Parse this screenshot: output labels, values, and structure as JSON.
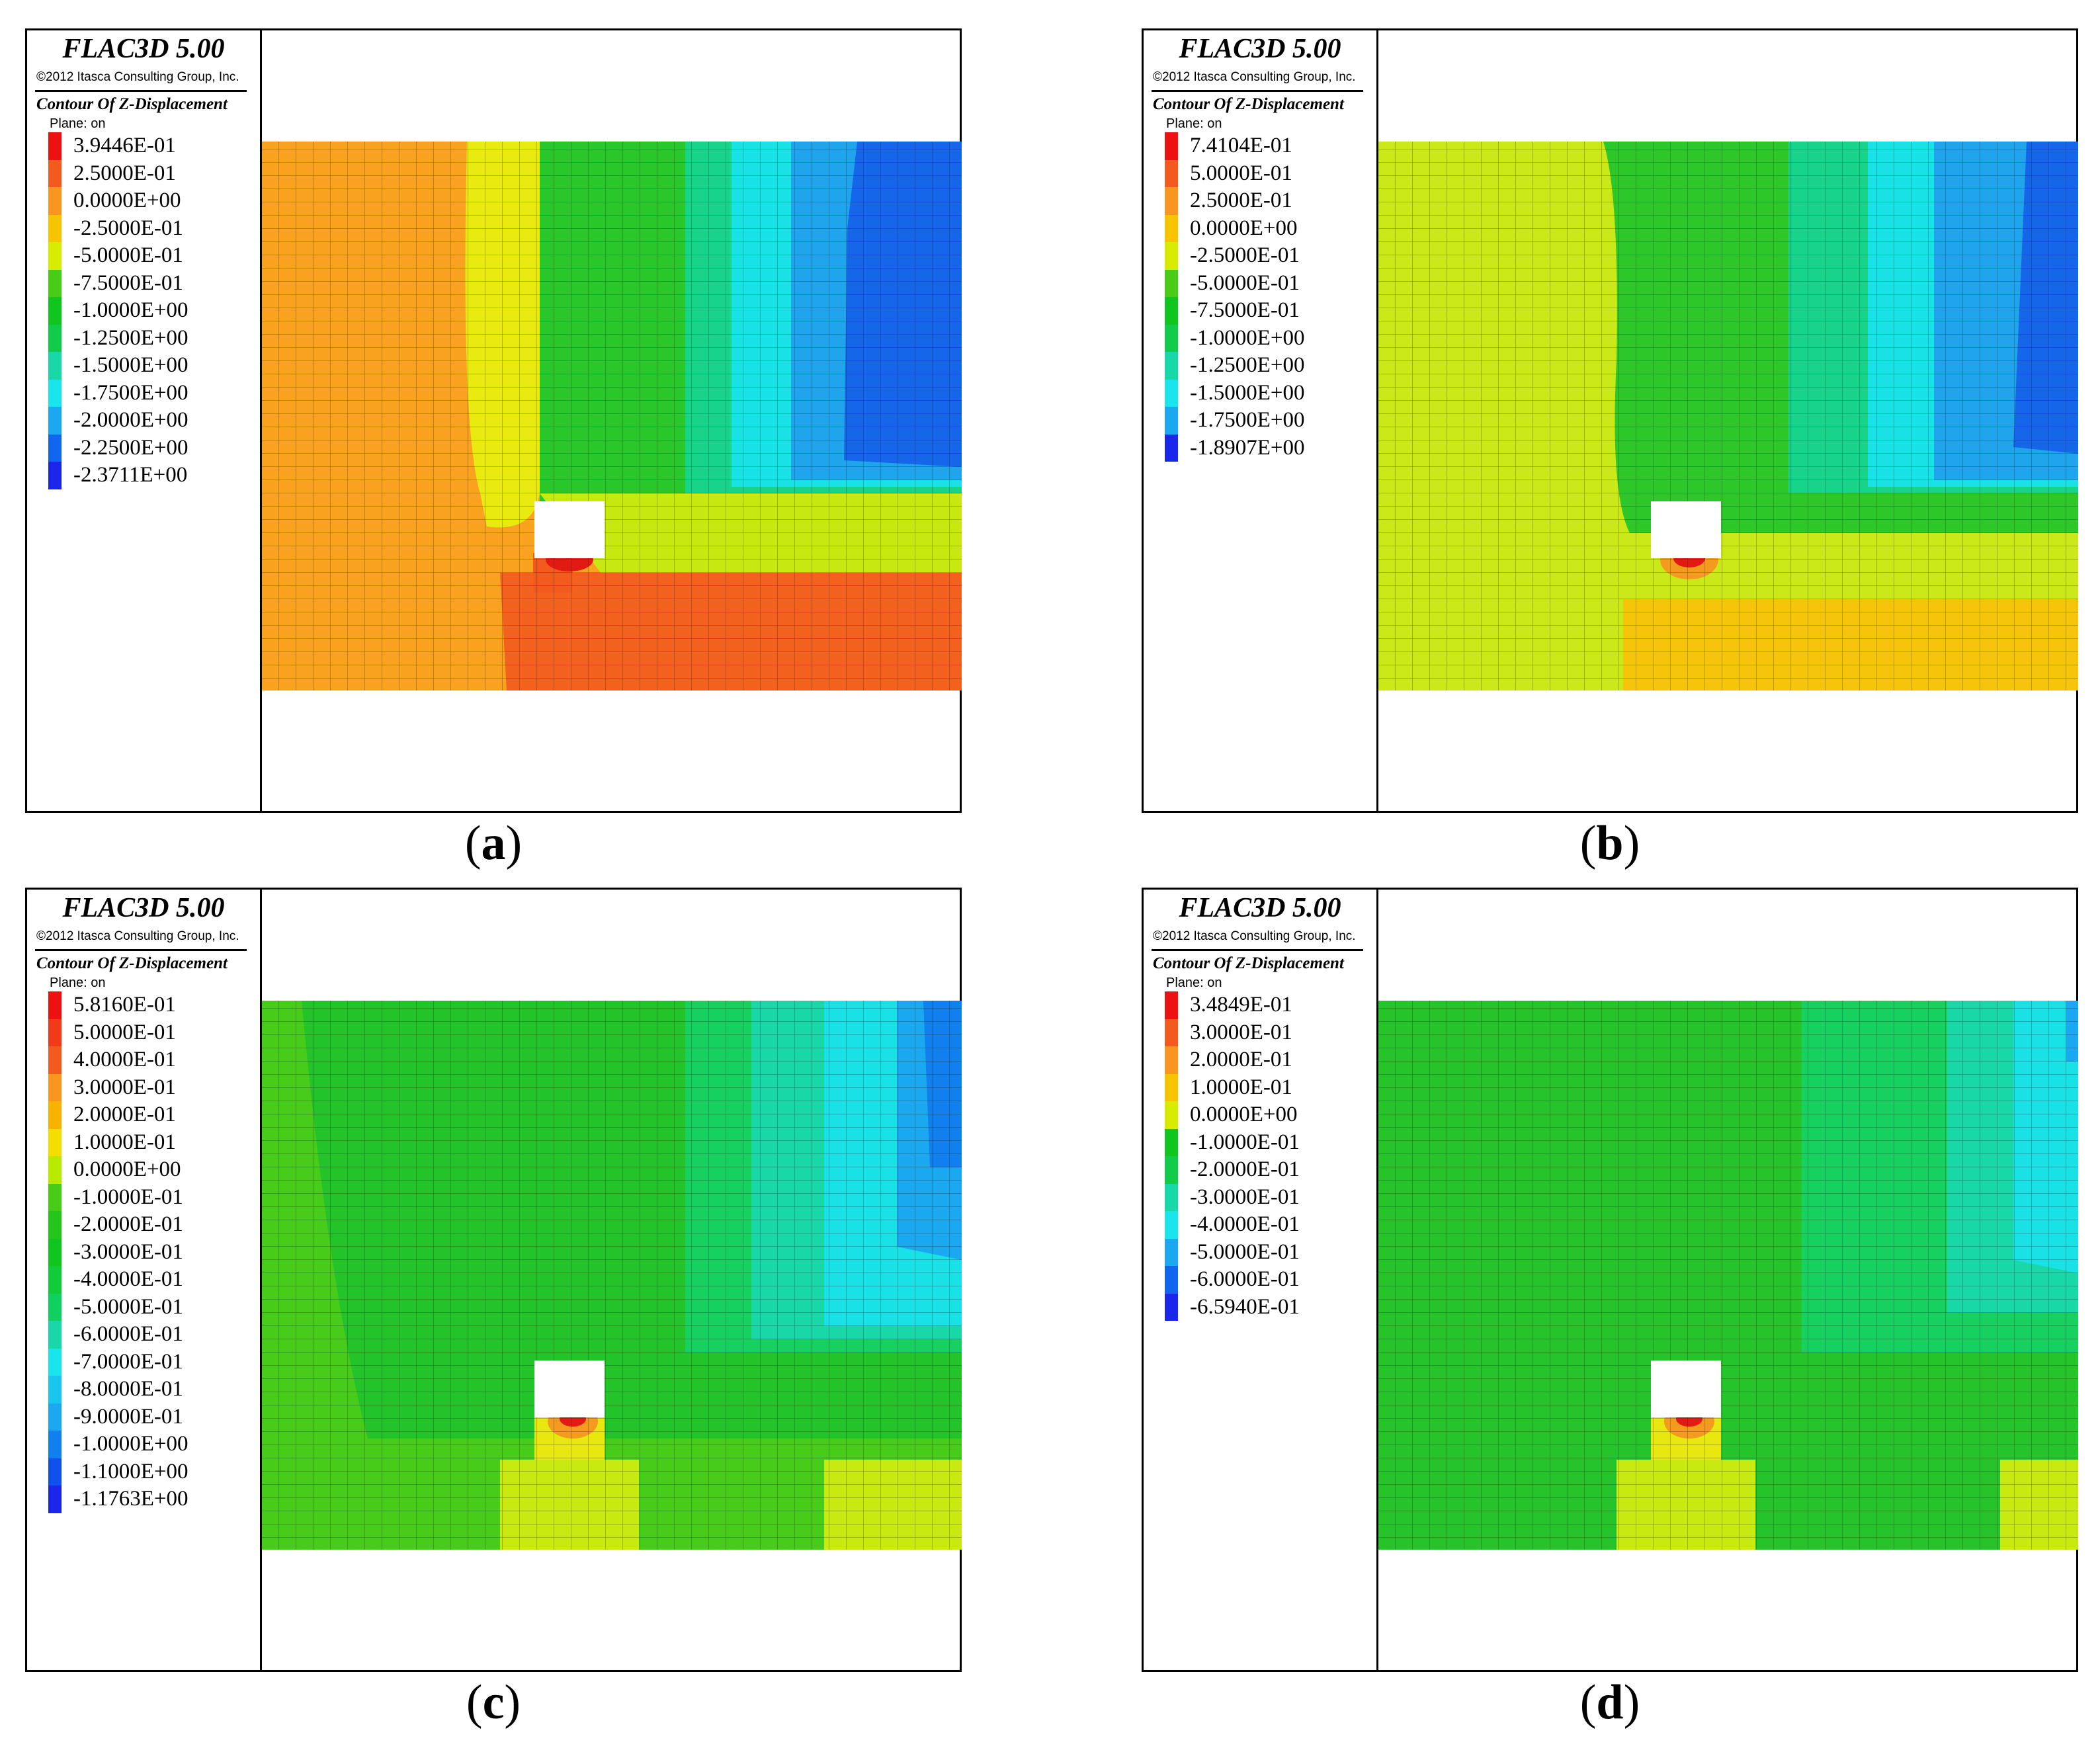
{
  "panels": [
    {
      "id": "a",
      "caption": "a",
      "legend": {
        "software": "FLAC3D 5.00",
        "copyright": "©2012 Itasca Consulting Group, Inc.",
        "contour_title": "Contour Of Z-Displacement",
        "plane": "Plane: on",
        "levels": [
          "3.9446E-01",
          "2.5000E-01",
          "0.0000E+00",
          "-2.5000E-01",
          "-5.0000E-01",
          "-7.5000E-01",
          "-1.0000E+00",
          "-1.2500E+00",
          "-1.5000E+00",
          "-1.7500E+00",
          "-2.0000E+00",
          "-2.2500E+00",
          "-2.3711E+00"
        ],
        "colors": [
          "#ee1111",
          "#f25a1e",
          "#f8961f",
          "#f6c400",
          "#d8ec00",
          "#49cc17",
          "#10c61e",
          "#10cc48",
          "#18d8a8",
          "#19e6ec",
          "#1ba8f0",
          "#1066ee",
          "#1a26ea"
        ]
      }
    },
    {
      "id": "b",
      "caption": "b",
      "legend": {
        "software": "FLAC3D 5.00",
        "copyright": "©2012 Itasca Consulting Group, Inc.",
        "contour_title": "Contour Of Z-Displacement",
        "plane": "Plane: on",
        "levels": [
          "7.4104E-01",
          "5.0000E-01",
          "2.5000E-01",
          "0.0000E+00",
          "-2.5000E-01",
          "-5.0000E-01",
          "-7.5000E-01",
          "-1.0000E+00",
          "-1.2500E+00",
          "-1.5000E+00",
          "-1.7500E+00",
          "-1.8907E+00"
        ],
        "colors": [
          "#ee1111",
          "#f25a1e",
          "#f8961f",
          "#f6c400",
          "#d8ec00",
          "#49cc17",
          "#10c61e",
          "#10cc48",
          "#18d8a8",
          "#19e6ec",
          "#1ba8f0",
          "#1a26ea"
        ]
      }
    },
    {
      "id": "c",
      "caption": "c",
      "legend": {
        "software": "FLAC3D 5.00",
        "copyright": "©2012 Itasca Consulting Group, Inc.",
        "contour_title": "Contour Of Z-Displacement",
        "plane": "Plane: on",
        "levels": [
          "5.8160E-01",
          "5.0000E-01",
          "4.0000E-01",
          "3.0000E-01",
          "2.0000E-01",
          "1.0000E-01",
          "0.0000E+00",
          "-1.0000E-01",
          "-2.0000E-01",
          "-3.0000E-01",
          "-4.0000E-01",
          "-5.0000E-01",
          "-6.0000E-01",
          "-7.0000E-01",
          "-8.0000E-01",
          "-9.0000E-01",
          "-1.0000E+00",
          "-1.1000E+00",
          "-1.1763E+00"
        ],
        "colors": [
          "#ee1111",
          "#f03a1a",
          "#f25a1e",
          "#f8961f",
          "#f6b400",
          "#f4dd00",
          "#b8ea00",
          "#49cc17",
          "#25c61c",
          "#10c61e",
          "#10cc38",
          "#10d060",
          "#18d8a8",
          "#19e6ec",
          "#1ac6f0",
          "#1ba8f0",
          "#1080ee",
          "#1050ec",
          "#1a26ea"
        ]
      }
    },
    {
      "id": "d",
      "caption": "d",
      "legend": {
        "software": "FLAC3D 5.00",
        "copyright": "©2012 Itasca Consulting Group, Inc.",
        "contour_title": "Contour Of Z-Displacement",
        "plane": "Plane: on",
        "levels": [
          "3.4849E-01",
          "3.0000E-01",
          "2.0000E-01",
          "1.0000E-01",
          "0.0000E+00",
          "-1.0000E-01",
          "-2.0000E-01",
          "-3.0000E-01",
          "-4.0000E-01",
          "-5.0000E-01",
          "-6.0000E-01",
          "-6.5940E-01"
        ],
        "colors": [
          "#ee1111",
          "#f25a1e",
          "#f8961f",
          "#f6c400",
          "#d8ec00",
          "#10c61e",
          "#10cc48",
          "#18d8a8",
          "#19e6ec",
          "#1ba8f0",
          "#1066ee",
          "#1a26ea"
        ]
      }
    }
  ],
  "chart_data": [
    {
      "type": "heatmap",
      "title": "Contour Of Z-Displacement",
      "panel": "a",
      "max": 0.39446,
      "min": -2.3711,
      "intervals": [
        0.25,
        0.0,
        -0.25,
        -0.5,
        -0.75,
        -1.0,
        -1.25,
        -1.5,
        -1.75,
        -2.0,
        -2.25
      ]
    },
    {
      "type": "heatmap",
      "title": "Contour Of Z-Displacement",
      "panel": "b",
      "max": 0.74104,
      "min": -1.8907,
      "intervals": [
        0.5,
        0.25,
        0.0,
        -0.25,
        -0.5,
        -0.75,
        -1.0,
        -1.25,
        -1.5,
        -1.75
      ]
    },
    {
      "type": "heatmap",
      "title": "Contour Of Z-Displacement",
      "panel": "c",
      "max": 0.5816,
      "min": -1.1763,
      "intervals": [
        0.5,
        0.4,
        0.3,
        0.2,
        0.1,
        0.0,
        -0.1,
        -0.2,
        -0.3,
        -0.4,
        -0.5,
        -0.6,
        -0.7,
        -0.8,
        -0.9,
        -1.0,
        -1.1
      ]
    },
    {
      "type": "heatmap",
      "title": "Contour Of Z-Displacement",
      "panel": "d",
      "max": 0.34849,
      "min": -0.6594,
      "intervals": [
        0.3,
        0.2,
        0.1,
        0.0,
        -0.1,
        -0.2,
        -0.3,
        -0.4,
        -0.5,
        -0.6
      ]
    }
  ]
}
